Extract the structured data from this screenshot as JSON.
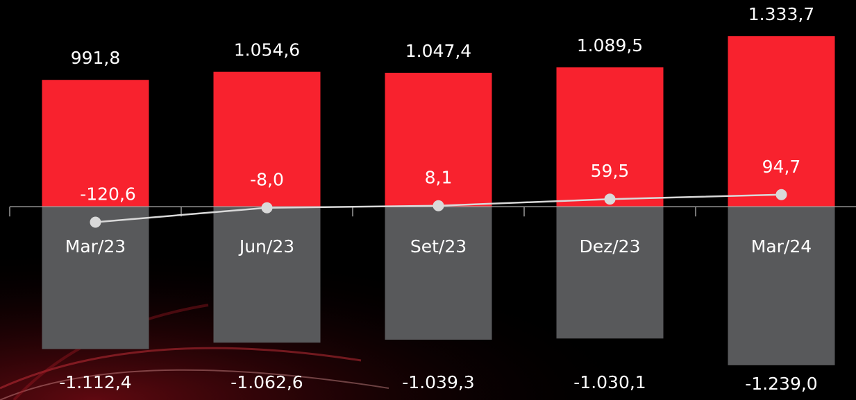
{
  "chart_data": {
    "type": "bar",
    "categories": [
      "Mar/23",
      "Jun/23",
      "Set/23",
      "Dez/23",
      "Mar/24"
    ],
    "series": [
      {
        "color": "#f8222e",
        "values": [
          991.8,
          1054.6,
          1047.4,
          1089.5,
          1333.7
        ],
        "value_labels": [
          "991,8",
          "1.054,6",
          "1.047,4",
          "1.089,5",
          "1.333,7"
        ]
      },
      {
        "color": "#58595b",
        "values": [
          -1112.4,
          -1062.6,
          -1039.3,
          -1030.1,
          -1239.0
        ],
        "value_labels": [
          "-1.112,4",
          "-1.062,6",
          "-1.039,3",
          "-1.030,1",
          "-1.239,0"
        ]
      },
      {
        "type": "line",
        "color": "#d9d9d9",
        "values": [
          -120.6,
          -8.0,
          8.1,
          59.5,
          94.7
        ],
        "value_labels": [
          "-120,6",
          "-8,0",
          "8,1",
          "59,5",
          "94,7"
        ]
      }
    ],
    "ylim": [
      -1500,
      1600
    ]
  }
}
